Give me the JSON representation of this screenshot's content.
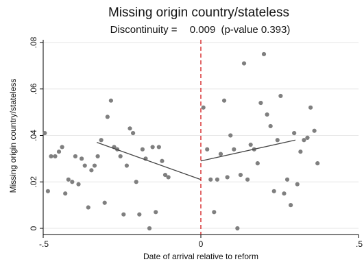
{
  "chart_data": {
    "type": "scatter",
    "title": "Missing origin country/stateless",
    "subtitle": {
      "label": "Discontinuity =",
      "estimate": "0.009",
      "pvalue": "(p-value 0.393)"
    },
    "xlabel": "Date of arrival relative to reform",
    "ylabel": "Missing origin country/stateless",
    "xlim": [
      -0.5,
      0.5
    ],
    "ylim": [
      0,
      0.08
    ],
    "xticks": [
      {
        "value": -0.5,
        "label": "-.5"
      },
      {
        "value": 0,
        "label": "0"
      },
      {
        "value": 0.5,
        "label": ".5"
      }
    ],
    "yticks": [
      {
        "value": 0,
        "label": "0"
      },
      {
        "value": 0.02,
        "label": ".02"
      },
      {
        "value": 0.04,
        "label": ".04"
      },
      {
        "value": 0.06,
        "label": ".06"
      },
      {
        "value": 0.08,
        "label": ".08"
      }
    ],
    "grid": true,
    "cutoff": 0,
    "points": [
      {
        "x": -0.495,
        "y": 0.041
      },
      {
        "x": -0.485,
        "y": 0.016
      },
      {
        "x": -0.475,
        "y": 0.031
      },
      {
        "x": -0.462,
        "y": 0.031
      },
      {
        "x": -0.45,
        "y": 0.033
      },
      {
        "x": -0.44,
        "y": 0.035
      },
      {
        "x": -0.43,
        "y": 0.015
      },
      {
        "x": -0.42,
        "y": 0.021
      },
      {
        "x": -0.408,
        "y": 0.02
      },
      {
        "x": -0.398,
        "y": 0.031
      },
      {
        "x": -0.388,
        "y": 0.019
      },
      {
        "x": -0.378,
        "y": 0.03
      },
      {
        "x": -0.368,
        "y": 0.027
      },
      {
        "x": -0.357,
        "y": 0.009
      },
      {
        "x": -0.347,
        "y": 0.025
      },
      {
        "x": -0.337,
        "y": 0.027
      },
      {
        "x": -0.327,
        "y": 0.031
      },
      {
        "x": -0.316,
        "y": 0.038
      },
      {
        "x": -0.305,
        "y": 0.011
      },
      {
        "x": -0.296,
        "y": 0.048
      },
      {
        "x": -0.285,
        "y": 0.055
      },
      {
        "x": -0.275,
        "y": 0.035
      },
      {
        "x": -0.265,
        "y": 0.034
      },
      {
        "x": -0.255,
        "y": 0.031
      },
      {
        "x": -0.245,
        "y": 0.006
      },
      {
        "x": -0.235,
        "y": 0.027
      },
      {
        "x": -0.225,
        "y": 0.043
      },
      {
        "x": -0.215,
        "y": 0.041
      },
      {
        "x": -0.205,
        "y": 0.02
      },
      {
        "x": -0.195,
        "y": 0.006
      },
      {
        "x": -0.185,
        "y": 0.034
      },
      {
        "x": -0.175,
        "y": 0.03
      },
      {
        "x": -0.163,
        "y": 0.0
      },
      {
        "x": -0.153,
        "y": 0.035
      },
      {
        "x": -0.143,
        "y": 0.007
      },
      {
        "x": -0.133,
        "y": 0.035
      },
      {
        "x": -0.123,
        "y": 0.029
      },
      {
        "x": -0.113,
        "y": 0.023
      },
      {
        "x": -0.103,
        "y": 0.022
      },
      {
        "x": 0.008,
        "y": 0.052
      },
      {
        "x": 0.02,
        "y": 0.034
      },
      {
        "x": 0.031,
        "y": 0.021
      },
      {
        "x": 0.042,
        "y": 0.007
      },
      {
        "x": 0.052,
        "y": 0.021
      },
      {
        "x": 0.063,
        "y": 0.032
      },
      {
        "x": 0.074,
        "y": 0.055
      },
      {
        "x": 0.084,
        "y": 0.022
      },
      {
        "x": 0.094,
        "y": 0.04
      },
      {
        "x": 0.105,
        "y": 0.034
      },
      {
        "x": 0.116,
        "y": 0.0
      },
      {
        "x": 0.126,
        "y": 0.023
      },
      {
        "x": 0.137,
        "y": 0.071
      },
      {
        "x": 0.148,
        "y": 0.021
      },
      {
        "x": 0.158,
        "y": 0.036
      },
      {
        "x": 0.169,
        "y": 0.034
      },
      {
        "x": 0.18,
        "y": 0.028
      },
      {
        "x": 0.19,
        "y": 0.054
      },
      {
        "x": 0.2,
        "y": 0.075
      },
      {
        "x": 0.21,
        "y": 0.049
      },
      {
        "x": 0.221,
        "y": 0.044
      },
      {
        "x": 0.232,
        "y": 0.016
      },
      {
        "x": 0.243,
        "y": 0.038
      },
      {
        "x": 0.253,
        "y": 0.057
      },
      {
        "x": 0.264,
        "y": 0.015
      },
      {
        "x": 0.274,
        "y": 0.021
      },
      {
        "x": 0.285,
        "y": 0.01
      },
      {
        "x": 0.296,
        "y": 0.041
      },
      {
        "x": 0.306,
        "y": 0.019
      },
      {
        "x": 0.316,
        "y": 0.033
      },
      {
        "x": 0.327,
        "y": 0.038
      },
      {
        "x": 0.338,
        "y": 0.039
      },
      {
        "x": 0.348,
        "y": 0.052
      },
      {
        "x": 0.36,
        "y": 0.042
      },
      {
        "x": 0.37,
        "y": 0.028
      }
    ],
    "fit_lines": [
      {
        "x": [
          -0.33,
          0
        ],
        "y": [
          0.037,
          0.021
        ]
      },
      {
        "x": [
          0,
          0.3
        ],
        "y": [
          0.029,
          0.038
        ]
      }
    ]
  }
}
